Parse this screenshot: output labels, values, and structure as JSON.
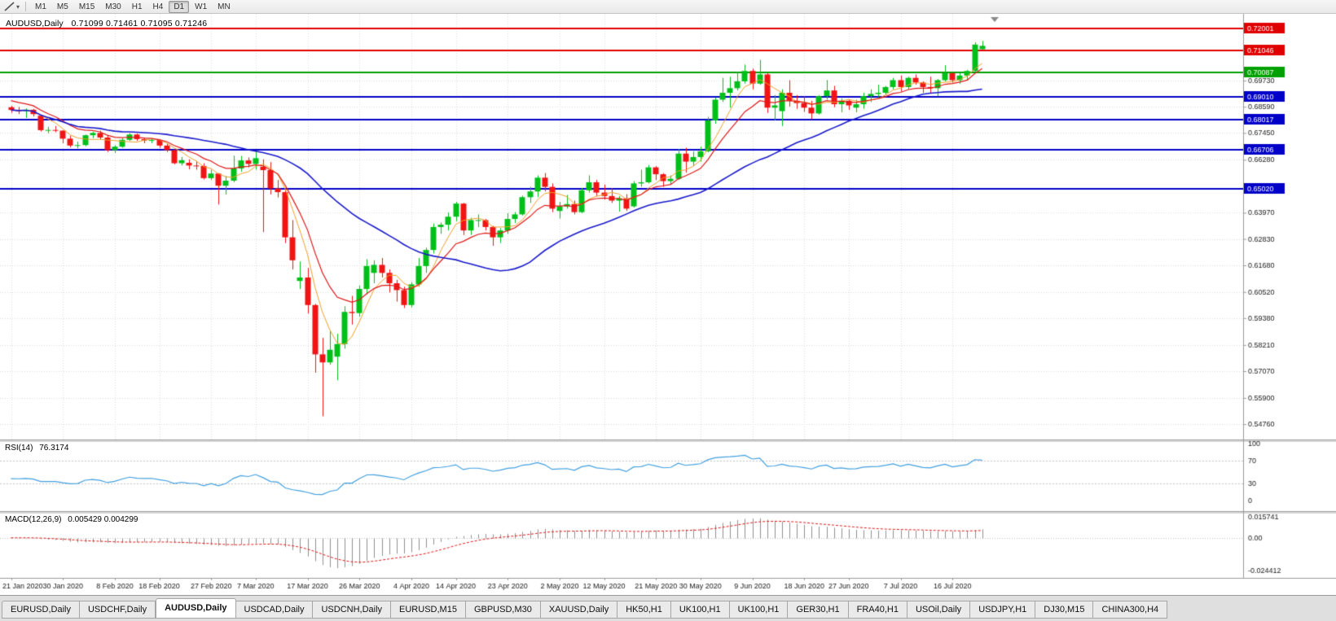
{
  "toolbar": {
    "tools": [
      {
        "icon": "trendline-tool-icon"
      },
      {
        "icon": "chevron-down-icon"
      }
    ],
    "timeframes": {
      "labels": [
        "M1",
        "M5",
        "M15",
        "M30",
        "H1",
        "H4",
        "D1",
        "W1",
        "MN"
      ],
      "active": "D1"
    }
  },
  "chart_data": {
    "type": "candlestick",
    "symbol": "AUDUSD",
    "period": "Daily",
    "title": "AUDUSD,Daily",
    "ohlc_text": "0.71099 0.71461 0.71095 0.71246",
    "price_range": {
      "top": 0.7264,
      "bottom": 0.5409
    },
    "colors": {
      "bull": "#00bf19",
      "bear": "#f01414",
      "grid": "#dcdcdc",
      "background": "#ffffff",
      "axis_text": "#1a1a1a"
    },
    "y_axis_labels": [
      {
        "value": 0.6973,
        "label": "0.69730"
      },
      {
        "value": 0.6859,
        "label": "0.68590"
      },
      {
        "value": 0.6745,
        "label": "0.67450"
      },
      {
        "value": 0.6628,
        "label": "0.66280"
      },
      {
        "value": 0.6397,
        "label": "0.63970"
      },
      {
        "value": 0.6283,
        "label": "0.62830"
      },
      {
        "value": 0.6168,
        "label": "0.61680"
      },
      {
        "value": 0.6052,
        "label": "0.60520"
      },
      {
        "value": 0.5938,
        "label": "0.59380"
      },
      {
        "value": 0.5821,
        "label": "0.58210"
      },
      {
        "value": 0.5707,
        "label": "0.57070"
      },
      {
        "value": 0.559,
        "label": "0.55900"
      },
      {
        "value": 0.5476,
        "label": "0.54760"
      }
    ],
    "levels": [
      {
        "value": 0.72001,
        "label": "0.72001",
        "color": "#e00000"
      },
      {
        "value": 0.71046,
        "label": "0.71046",
        "color": "#e00000"
      },
      {
        "value": 0.70087,
        "label": "0.70087",
        "color": "#00a000"
      },
      {
        "value": 0.6901,
        "label": "0.69010",
        "color": "#0000c8"
      },
      {
        "value": 0.68017,
        "label": "0.68017",
        "color": "#0000c8"
      },
      {
        "value": 0.66706,
        "label": "0.66706",
        "color": "#0000c8"
      },
      {
        "value": 0.6502,
        "label": "0.65020",
        "color": "#0000c8"
      }
    ],
    "x_ticks": [
      [
        0,
        "21 Jan 2020"
      ],
      [
        7,
        "30 Jan 2020"
      ],
      [
        14,
        "8 Feb 2020"
      ],
      [
        20,
        "18 Feb 2020"
      ],
      [
        27,
        "27 Feb 2020"
      ],
      [
        33,
        "7 Mar 2020"
      ],
      [
        40,
        "17 Mar 2020"
      ],
      [
        47,
        "26 Mar 2020"
      ],
      [
        54,
        "4 Apr 2020"
      ],
      [
        60,
        "14 Apr 2020"
      ],
      [
        67,
        "23 Apr 2020"
      ],
      [
        74,
        "2 May 2020"
      ],
      [
        80,
        "12 May 2020"
      ],
      [
        87,
        "21 May 2020"
      ],
      [
        93,
        "30 May 2020"
      ],
      [
        100,
        "9 Jun 2020"
      ],
      [
        107,
        "18 Jun 2020"
      ],
      [
        113,
        "27 Jun 2020"
      ],
      [
        120,
        "7 Jul 2020"
      ],
      [
        127,
        "16 Jul 2020"
      ]
    ],
    "moving_averages": [
      {
        "method": "sma",
        "period": 5,
        "color": "#f0a028",
        "width": 1
      },
      {
        "method": "ema",
        "period": 10,
        "seed": 0.6895,
        "color": "#e01818",
        "width": 1.2
      },
      {
        "method": "sma",
        "period": 30,
        "color": "#1a1acc",
        "width": 1.6
      }
    ],
    "candles": [
      [
        0.6857,
        0.6863,
        0.6832,
        0.6845
      ],
      [
        0.6845,
        0.6858,
        0.6827,
        0.684
      ],
      [
        0.684,
        0.6852,
        0.681,
        0.6846
      ],
      [
        0.6846,
        0.685,
        0.6817,
        0.6827
      ],
      [
        0.682,
        0.6823,
        0.6751,
        0.6757
      ],
      [
        0.6757,
        0.6772,
        0.6744,
        0.6758
      ],
      [
        0.6758,
        0.6775,
        0.6748,
        0.6755
      ],
      [
        0.6755,
        0.6757,
        0.67,
        0.672
      ],
      [
        0.672,
        0.6733,
        0.6682,
        0.669
      ],
      [
        0.669,
        0.6707,
        0.6678,
        0.6692
      ],
      [
        0.6692,
        0.6738,
        0.6687,
        0.6735
      ],
      [
        0.6735,
        0.675,
        0.6722,
        0.6745
      ],
      [
        0.6745,
        0.6755,
        0.6716,
        0.6725
      ],
      [
        0.6725,
        0.6733,
        0.6662,
        0.667
      ],
      [
        0.667,
        0.6692,
        0.6658,
        0.6685
      ],
      [
        0.6685,
        0.6722,
        0.668,
        0.6715
      ],
      [
        0.6715,
        0.6744,
        0.671,
        0.6738
      ],
      [
        0.6738,
        0.6742,
        0.671,
        0.6718
      ],
      [
        0.6718,
        0.6725,
        0.67,
        0.6712
      ],
      [
        0.6712,
        0.6722,
        0.67,
        0.6714
      ],
      [
        0.6714,
        0.6716,
        0.668,
        0.669
      ],
      [
        0.669,
        0.67,
        0.6662,
        0.667
      ],
      [
        0.667,
        0.6673,
        0.6608,
        0.6613
      ],
      [
        0.6613,
        0.664,
        0.6603,
        0.6626
      ],
      [
        0.6615,
        0.663,
        0.6586,
        0.6603
      ],
      [
        0.6603,
        0.6622,
        0.6585,
        0.6601
      ],
      [
        0.6601,
        0.6613,
        0.6542,
        0.6548
      ],
      [
        0.6548,
        0.6585,
        0.654,
        0.6568
      ],
      [
        0.6568,
        0.657,
        0.6433,
        0.6515
      ],
      [
        0.6515,
        0.6557,
        0.6477,
        0.6537
      ],
      [
        0.6537,
        0.6646,
        0.653,
        0.659
      ],
      [
        0.659,
        0.6645,
        0.6576,
        0.6625
      ],
      [
        0.6625,
        0.6638,
        0.6595,
        0.661
      ],
      [
        0.661,
        0.6665,
        0.6585,
        0.6635
      ],
      [
        0.6598,
        0.663,
        0.6313,
        0.6583
      ],
      [
        0.6583,
        0.6618,
        0.6477,
        0.6503
      ],
      [
        0.6503,
        0.654,
        0.6464,
        0.6487
      ],
      [
        0.6487,
        0.6503,
        0.6265,
        0.629
      ],
      [
        0.629,
        0.6365,
        0.615,
        0.619
      ],
      [
        0.61,
        0.6185,
        0.6065,
        0.6115
      ],
      [
        0.6115,
        0.6157,
        0.5958,
        0.5995
      ],
      [
        0.5995,
        0.6,
        0.57,
        0.578
      ],
      [
        0.578,
        0.5852,
        0.551,
        0.5745
      ],
      [
        0.5745,
        0.5885,
        0.5735,
        0.58
      ],
      [
        0.577,
        0.587,
        0.5667,
        0.5825
      ],
      [
        0.5825,
        0.599,
        0.5805,
        0.5965
      ],
      [
        0.5965,
        0.6035,
        0.591,
        0.596
      ],
      [
        0.596,
        0.608,
        0.5945,
        0.6065
      ],
      [
        0.6065,
        0.6195,
        0.6042,
        0.6165
      ],
      [
        0.6135,
        0.619,
        0.609,
        0.617
      ],
      [
        0.617,
        0.62,
        0.6115,
        0.6135
      ],
      [
        0.6135,
        0.615,
        0.605,
        0.609
      ],
      [
        0.609,
        0.6105,
        0.601,
        0.606
      ],
      [
        0.606,
        0.6075,
        0.5982,
        0.5995
      ],
      [
        0.5995,
        0.6095,
        0.5985,
        0.6085
      ],
      [
        0.6085,
        0.62,
        0.6075,
        0.6165
      ],
      [
        0.6165,
        0.6245,
        0.6135,
        0.6235
      ],
      [
        0.6235,
        0.635,
        0.622,
        0.6335
      ],
      [
        0.6335,
        0.6355,
        0.6305,
        0.6345
      ],
      [
        0.6345,
        0.6398,
        0.632,
        0.638
      ],
      [
        0.638,
        0.6445,
        0.636,
        0.6437
      ],
      [
        0.6437,
        0.644,
        0.63,
        0.632
      ],
      [
        0.632,
        0.6375,
        0.63,
        0.6365
      ],
      [
        0.6365,
        0.639,
        0.6335,
        0.6365
      ],
      [
        0.6365,
        0.637,
        0.632,
        0.6335
      ],
      [
        0.6335,
        0.634,
        0.6253,
        0.629
      ],
      [
        0.629,
        0.633,
        0.6265,
        0.632
      ],
      [
        0.632,
        0.6395,
        0.6305,
        0.637
      ],
      [
        0.637,
        0.64,
        0.6352,
        0.639
      ],
      [
        0.639,
        0.6472,
        0.6385,
        0.6465
      ],
      [
        0.6465,
        0.651,
        0.644,
        0.649
      ],
      [
        0.649,
        0.656,
        0.6465,
        0.655
      ],
      [
        0.655,
        0.657,
        0.649,
        0.651
      ],
      [
        0.651,
        0.6525,
        0.64,
        0.6415
      ],
      [
        0.6405,
        0.6445,
        0.6372,
        0.6425
      ],
      [
        0.6425,
        0.6475,
        0.6415,
        0.6435
      ],
      [
        0.6435,
        0.645,
        0.639,
        0.64
      ],
      [
        0.64,
        0.6505,
        0.6395,
        0.6495
      ],
      [
        0.6495,
        0.656,
        0.6485,
        0.653
      ],
      [
        0.653,
        0.654,
        0.647,
        0.6485
      ],
      [
        0.6485,
        0.652,
        0.6455,
        0.647
      ],
      [
        0.647,
        0.6505,
        0.644,
        0.645
      ],
      [
        0.645,
        0.647,
        0.6402,
        0.646
      ],
      [
        0.646,
        0.6478,
        0.6405,
        0.6415
      ],
      [
        0.6425,
        0.6535,
        0.642,
        0.6525
      ],
      [
        0.6525,
        0.6585,
        0.651,
        0.653
      ],
      [
        0.653,
        0.6605,
        0.6525,
        0.6595
      ],
      [
        0.6595,
        0.66,
        0.654,
        0.6565
      ],
      [
        0.6565,
        0.657,
        0.651,
        0.6535
      ],
      [
        0.6535,
        0.656,
        0.652,
        0.6545
      ],
      [
        0.6545,
        0.6675,
        0.654,
        0.6655
      ],
      [
        0.6655,
        0.668,
        0.6572,
        0.662
      ],
      [
        0.662,
        0.6665,
        0.66,
        0.664
      ],
      [
        0.664,
        0.6685,
        0.662,
        0.6665
      ],
      [
        0.6665,
        0.6815,
        0.666,
        0.68
      ],
      [
        0.68,
        0.69,
        0.6785,
        0.689
      ],
      [
        0.689,
        0.6985,
        0.688,
        0.692
      ],
      [
        0.692,
        0.699,
        0.6855,
        0.694
      ],
      [
        0.694,
        0.701,
        0.693,
        0.697
      ],
      [
        0.697,
        0.7043,
        0.696,
        0.7015
      ],
      [
        0.7015,
        0.7025,
        0.6935,
        0.696
      ],
      [
        0.696,
        0.7063,
        0.6955,
        0.7
      ],
      [
        0.7,
        0.7005,
        0.6832,
        0.6855
      ],
      [
        0.6855,
        0.691,
        0.68,
        0.6865
      ],
      [
        0.684,
        0.6935,
        0.6775,
        0.692
      ],
      [
        0.692,
        0.6975,
        0.686,
        0.6885
      ],
      [
        0.6885,
        0.691,
        0.685,
        0.6875
      ],
      [
        0.6875,
        0.6905,
        0.6837,
        0.6855
      ],
      [
        0.6855,
        0.6885,
        0.6805,
        0.683
      ],
      [
        0.683,
        0.691,
        0.6825,
        0.6905
      ],
      [
        0.6905,
        0.6975,
        0.689,
        0.693
      ],
      [
        0.693,
        0.695,
        0.6857,
        0.687
      ],
      [
        0.687,
        0.6895,
        0.6835,
        0.6885
      ],
      [
        0.6885,
        0.689,
        0.6845,
        0.6865
      ],
      [
        0.6855,
        0.689,
        0.6835,
        0.687
      ],
      [
        0.687,
        0.692,
        0.685,
        0.6905
      ],
      [
        0.6905,
        0.6935,
        0.688,
        0.6915
      ],
      [
        0.6915,
        0.6955,
        0.69,
        0.692
      ],
      [
        0.692,
        0.695,
        0.691,
        0.6945
      ],
      [
        0.6945,
        0.6985,
        0.6935,
        0.6975
      ],
      [
        0.6975,
        0.6995,
        0.6925,
        0.6945
      ],
      [
        0.6945,
        0.699,
        0.6935,
        0.6985
      ],
      [
        0.6985,
        0.7,
        0.6955,
        0.6965
      ],
      [
        0.6965,
        0.697,
        0.692,
        0.6945
      ],
      [
        0.6945,
        0.699,
        0.692,
        0.694
      ],
      [
        0.694,
        0.698,
        0.6905,
        0.6975
      ],
      [
        0.6975,
        0.704,
        0.697,
        0.7005
      ],
      [
        0.7005,
        0.701,
        0.6965,
        0.6975
      ],
      [
        0.6975,
        0.7005,
        0.696,
        0.6995
      ],
      [
        0.6995,
        0.702,
        0.6975,
        0.7015
      ],
      [
        0.7015,
        0.714,
        0.701,
        0.713
      ],
      [
        0.71099,
        0.71461,
        0.71095,
        0.71246
      ]
    ],
    "indicators": {
      "rsi": {
        "label": "RSI(14)",
        "value": "76.3174",
        "period": 14,
        "color": "#42a0e0",
        "levels": [
          70,
          30
        ],
        "scale": [
          {
            "value": 100,
            "label": "100"
          },
          {
            "value": 70,
            "label": "70"
          },
          {
            "value": 30,
            "label": "30"
          },
          {
            "value": 0,
            "label": "0"
          }
        ]
      },
      "macd": {
        "label": "MACD(12,26,9)",
        "value": "0.005429 0.004299",
        "fast": 12,
        "slow": 26,
        "signal_period": 9,
        "histogram_color": "#909090",
        "signal_color": "#e01818",
        "range": {
          "top": 0.0175,
          "bottom": -0.0275
        },
        "scale": [
          {
            "value": 0.015741,
            "label": "0.015741"
          },
          {
            "value": 0,
            "label": "0.00"
          },
          {
            "value": -0.024412,
            "label": "-0.024412"
          }
        ]
      }
    }
  },
  "tabs": {
    "active_index": 2,
    "items": [
      "EURUSD,Daily",
      "USDCHF,Daily",
      "AUDUSD,Daily",
      "USDCAD,Daily",
      "USDCNH,Daily",
      "EURUSD,M15",
      "GBPUSD,M30",
      "XAUUSD,Daily",
      "HK50,H1",
      "UK100,H1",
      "UK100,H1",
      "GER30,H1",
      "FRA40,H1",
      "USOil,Daily",
      "USDJPY,H1",
      "DJ30,M15",
      "CHINA300,H4"
    ]
  }
}
